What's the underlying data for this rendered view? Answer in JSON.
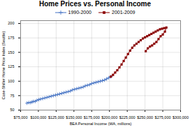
{
  "chart_data": {
    "type": "line",
    "title": "Home Prices vs. Personal Income",
    "xlabel": "BEA Personal Income (WA, millions)",
    "ylabel": "Case-Shiller Home Price Index (Seattle)",
    "series": [
      {
        "name": "1990-2000",
        "color": "#4472C4",
        "marker": "plus",
        "x": [
          84000,
          86500,
          89000,
          91000,
          93000,
          95500,
          98000,
          100500,
          103000,
          106000,
          109000,
          112000,
          115000,
          118000,
          121000,
          124000,
          127000,
          130000,
          133000,
          136000,
          139000,
          142000,
          145000,
          148000,
          151000,
          154000,
          157000,
          160000,
          163000,
          166000,
          169000,
          172000,
          175000,
          178000,
          181000,
          184000,
          187000,
          190000,
          193000,
          196000,
          199000,
          202000
        ],
        "values": [
          62,
          63,
          63,
          64,
          65,
          65,
          67,
          68,
          69,
          70,
          71,
          72,
          73,
          74,
          75,
          76,
          77,
          78,
          79,
          80,
          81,
          82,
          83,
          85,
          86,
          87,
          88,
          89,
          90,
          92,
          93,
          94,
          96,
          97,
          98,
          99,
          100,
          101,
          102,
          104,
          106,
          108
        ]
      },
      {
        "name": "2001-2009",
        "color": "#8B0000",
        "marker": "square",
        "x": [
          202000,
          205000,
          208000,
          211000,
          214000,
          217000,
          220000,
          223000,
          226000,
          229000,
          232000,
          235000,
          238000,
          241000,
          244000,
          247000,
          250000,
          253000,
          256000,
          259000,
          262000,
          265000,
          268000,
          271000,
          274000,
          277000,
          280000,
          278000,
          275000,
          272000,
          269000,
          266000,
          263000,
          260000,
          257000,
          254000,
          251000
        ],
        "values": [
          108,
          111,
          115,
          119,
          124,
          129,
          135,
          141,
          147,
          153,
          158,
          162,
          165,
          168,
          171,
          174,
          176,
          178,
          180,
          182,
          184,
          186,
          188,
          190,
          191,
          192,
          193,
          186,
          181,
          178,
          173,
          168,
          165,
          162,
          160,
          157,
          152
        ]
      }
    ],
    "xlim": [
      75000,
      300000
    ],
    "ylim": [
      50,
      205
    ],
    "xticks": [
      {
        "value": 75000,
        "label": "$75,000"
      },
      {
        "value": 100000,
        "label": "$100,000"
      },
      {
        "value": 125000,
        "label": "$125,000"
      },
      {
        "value": 150000,
        "label": "$150,000"
      },
      {
        "value": 175000,
        "label": "$175,000"
      },
      {
        "value": 200000,
        "label": "$200,000"
      },
      {
        "value": 225000,
        "label": "$225,000"
      },
      {
        "value": 250000,
        "label": "$250,000"
      },
      {
        "value": 275000,
        "label": "$275,000"
      },
      {
        "value": 300000,
        "label": "$300,000"
      }
    ],
    "yticks": [
      50,
      75,
      100,
      125,
      150,
      175,
      200
    ],
    "grid": true,
    "legend": "top"
  }
}
